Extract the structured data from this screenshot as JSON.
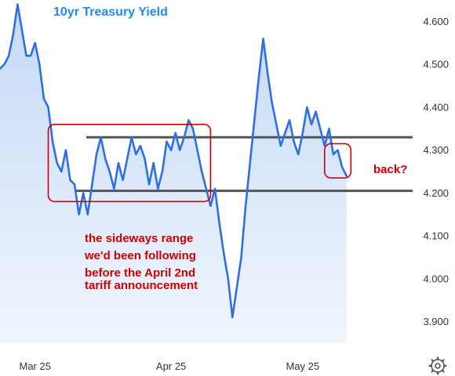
{
  "chart_data": {
    "type": "area",
    "title": "10yr Treasury Yield",
    "x_ticks": [
      "Mar 25",
      "Apr 25",
      "May 25"
    ],
    "y_ticks": [
      "3.900",
      "4.000",
      "4.100",
      "4.200",
      "4.300",
      "4.400",
      "4.500",
      "4.600"
    ],
    "ylim": [
      3.85,
      4.65
    ],
    "xlim": [
      "2025-02-21",
      "2025-05-25"
    ],
    "grid": false,
    "series": [
      {
        "values": [
          [
            "2025-02-21",
            4.49
          ],
          [
            "2025-02-22",
            4.5
          ],
          [
            "2025-02-23",
            4.52
          ],
          [
            "2025-02-24",
            4.57
          ],
          [
            "2025-02-25",
            4.64
          ],
          [
            "2025-02-26",
            4.58
          ],
          [
            "2025-02-27",
            4.52
          ],
          [
            "2025-02-28",
            4.52
          ],
          [
            "2025-03-01",
            4.55
          ],
          [
            "2025-03-02",
            4.5
          ],
          [
            "2025-03-03",
            4.42
          ],
          [
            "2025-03-04",
            4.4
          ],
          [
            "2025-03-05",
            4.32
          ],
          [
            "2025-03-06",
            4.27
          ],
          [
            "2025-03-07",
            4.25
          ],
          [
            "2025-03-08",
            4.3
          ],
          [
            "2025-03-09",
            4.23
          ],
          [
            "2025-03-10",
            4.22
          ],
          [
            "2025-03-11",
            4.15
          ],
          [
            "2025-03-12",
            4.2
          ],
          [
            "2025-03-13",
            4.15
          ],
          [
            "2025-03-14",
            4.22
          ],
          [
            "2025-03-15",
            4.29
          ],
          [
            "2025-03-16",
            4.33
          ],
          [
            "2025-03-17",
            4.28
          ],
          [
            "2025-03-18",
            4.25
          ],
          [
            "2025-03-19",
            4.21
          ],
          [
            "2025-03-20",
            4.27
          ],
          [
            "2025-03-21",
            4.23
          ],
          [
            "2025-03-22",
            4.28
          ],
          [
            "2025-03-23",
            4.33
          ],
          [
            "2025-03-24",
            4.29
          ],
          [
            "2025-03-25",
            4.31
          ],
          [
            "2025-03-26",
            4.28
          ],
          [
            "2025-03-27",
            4.22
          ],
          [
            "2025-03-28",
            4.27
          ],
          [
            "2025-03-29",
            4.21
          ],
          [
            "2025-03-30",
            4.25
          ],
          [
            "2025-03-31",
            4.32
          ],
          [
            "2025-04-01",
            4.3
          ],
          [
            "2025-04-02",
            4.34
          ],
          [
            "2025-04-03",
            4.3
          ],
          [
            "2025-04-04",
            4.33
          ],
          [
            "2025-04-05",
            4.37
          ],
          [
            "2025-04-06",
            4.35
          ],
          [
            "2025-04-07",
            4.3
          ],
          [
            "2025-04-08",
            4.25
          ],
          [
            "2025-04-09",
            4.21
          ],
          [
            "2025-04-10",
            4.17
          ],
          [
            "2025-04-11",
            4.21
          ],
          [
            "2025-04-12",
            4.13
          ],
          [
            "2025-04-13",
            4.06
          ],
          [
            "2025-04-14",
            4.0
          ],
          [
            "2025-04-15",
            3.91
          ],
          [
            "2025-04-16",
            3.98
          ],
          [
            "2025-04-17",
            4.05
          ],
          [
            "2025-04-18",
            4.17
          ],
          [
            "2025-04-19",
            4.27
          ],
          [
            "2025-04-20",
            4.37
          ],
          [
            "2025-04-21",
            4.47
          ],
          [
            "2025-04-22",
            4.56
          ],
          [
            "2025-04-23",
            4.48
          ],
          [
            "2025-04-24",
            4.41
          ],
          [
            "2025-04-25",
            4.36
          ],
          [
            "2025-04-26",
            4.31
          ],
          [
            "2025-04-27",
            4.34
          ],
          [
            "2025-04-28",
            4.37
          ],
          [
            "2025-04-29",
            4.32
          ],
          [
            "2025-04-30",
            4.29
          ],
          [
            "2025-05-01",
            4.34
          ],
          [
            "2025-05-02",
            4.4
          ],
          [
            "2025-05-03",
            4.36
          ],
          [
            "2025-05-04",
            4.39
          ],
          [
            "2025-05-05",
            4.35
          ],
          [
            "2025-05-06",
            4.31
          ],
          [
            "2025-05-07",
            4.35
          ],
          [
            "2025-05-08",
            4.29
          ],
          [
            "2025-05-09",
            4.3
          ],
          [
            "2025-05-10",
            4.26
          ],
          [
            "2025-05-11",
            4.24
          ]
        ]
      }
    ],
    "reference_lines": [
      4.33,
      4.205
    ],
    "range_box": {
      "x": [
        "2025-03-04",
        "2025-04-10"
      ],
      "y": [
        4.18,
        4.36
      ]
    },
    "end_box": {
      "x": [
        "2025-05-06",
        "2025-05-12"
      ],
      "y": [
        4.235,
        4.315
      ]
    },
    "annotations": [
      "the sideways range",
      "we'd been following",
      "before the April 2nd",
      "tariff announcement"
    ],
    "end_annotation": "back?"
  },
  "colors": {
    "title": "#2189ff",
    "line": "#2f6fe6",
    "fill_top": "#c5d9f7",
    "fill_bottom": "#f1f6fe",
    "annotation": "#d10000",
    "reference": "#555555",
    "axis_text": "#333333"
  },
  "icons": {
    "settings": "gear-icon"
  }
}
